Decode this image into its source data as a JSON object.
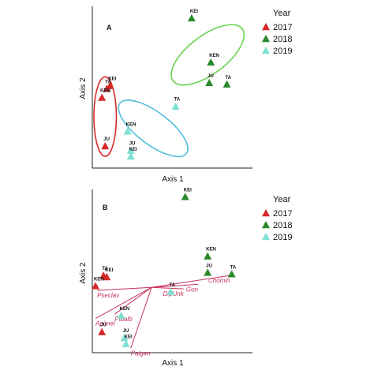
{
  "colors": {
    "2017": "#d62a2a",
    "2018": "#2a8a2a",
    "2019": "#7fe0d4",
    "ellipse_2017": "#d62a2a",
    "ellipse_2018": "#66d44c",
    "ellipse_2019": "#56bedc",
    "vector": "#c8325a"
  },
  "chart_data": [
    {
      "type": "scatter",
      "panel_label": "A",
      "xlabel": "Axis 1",
      "ylabel": "Axis 2",
      "legend": {
        "title": "Year",
        "placement": "right",
        "entries": [
          "2017",
          "2018",
          "2019"
        ]
      },
      "points": [
        {
          "label": "KEI",
          "year": "2018",
          "x": 0.62,
          "y": 0.92
        },
        {
          "label": "KEN",
          "year": "2018",
          "x": 0.74,
          "y": 0.62
        },
        {
          "label": "JU",
          "year": "2018",
          "x": 0.73,
          "y": 0.48
        },
        {
          "label": "TA",
          "year": "2018",
          "x": 0.84,
          "y": 0.47
        },
        {
          "label": "TA",
          "year": "2017",
          "x": 0.09,
          "y": 0.44
        },
        {
          "label": "KEI",
          "year": "2017",
          "x": 0.11,
          "y": 0.46
        },
        {
          "label": "KEN",
          "year": "2017",
          "x": 0.06,
          "y": 0.38
        },
        {
          "label": "JU",
          "year": "2017",
          "x": 0.08,
          "y": 0.05
        },
        {
          "label": "TA",
          "year": "2019",
          "x": 0.52,
          "y": 0.32
        },
        {
          "label": "KEN",
          "year": "2019",
          "x": 0.22,
          "y": 0.15
        },
        {
          "label": "JU",
          "year": "2019",
          "x": 0.24,
          "y": 0.02
        },
        {
          "label": "KEI",
          "year": "2019",
          "x": 0.24,
          "y": -0.02
        }
      ],
      "ellipses": [
        {
          "year": "2018",
          "cx": 0.72,
          "cy": 0.67,
          "rx": 0.27,
          "ry": 0.13,
          "angle": 37
        },
        {
          "year": "2017",
          "cx": 0.08,
          "cy": 0.25,
          "rx": 0.07,
          "ry": 0.27,
          "angle": 0
        },
        {
          "year": "2019",
          "cx": 0.38,
          "cy": 0.17,
          "rx": 0.26,
          "ry": 0.11,
          "angle": -37
        }
      ],
      "xlim": [
        0,
        1
      ],
      "ylim": [
        -0.1,
        1
      ]
    },
    {
      "type": "scatter",
      "panel_label": "B",
      "xlabel": "Axis 1",
      "ylabel": "Axis 2",
      "legend": {
        "title": "Year",
        "placement": "right",
        "entries": [
          "2017",
          "2018",
          "2019"
        ]
      },
      "points": [
        {
          "label": "KEI",
          "year": "2018",
          "x": 0.58,
          "y": 0.95
        },
        {
          "label": "KEN",
          "year": "2018",
          "x": 0.72,
          "y": 0.55
        },
        {
          "label": "JU",
          "year": "2018",
          "x": 0.72,
          "y": 0.44
        },
        {
          "label": "TA",
          "year": "2018",
          "x": 0.87,
          "y": 0.43
        },
        {
          "label": "TA",
          "year": "2017",
          "x": 0.07,
          "y": 0.42
        },
        {
          "label": "KEI",
          "year": "2017",
          "x": 0.09,
          "y": 0.41
        },
        {
          "label": "KEN",
          "year": "2017",
          "x": 0.02,
          "y": 0.35
        },
        {
          "label": "JU",
          "year": "2017",
          "x": 0.06,
          "y": 0.04
        },
        {
          "label": "TA",
          "year": "2019",
          "x": 0.49,
          "y": 0.31
        },
        {
          "label": "KEN",
          "year": "2019",
          "x": 0.18,
          "y": 0.15
        },
        {
          "label": "JU",
          "year": "2019",
          "x": 0.2,
          "y": 0.0
        },
        {
          "label": "KEI",
          "year": "2019",
          "x": 0.21,
          "y": -0.04
        }
      ],
      "vectors": [
        {
          "label": "Chomin",
          "x": 0.86,
          "y": 0.42
        },
        {
          "label": "Gon",
          "x": 0.66,
          "y": 0.36
        },
        {
          "label": "DipUnk",
          "x": 0.57,
          "y": 0.33
        },
        {
          "label": "Pseclav",
          "x": 0.03,
          "y": 0.32
        },
        {
          "label": "Palalb",
          "x": 0.14,
          "y": 0.16
        },
        {
          "label": "Apimel",
          "x": 0.02,
          "y": 0.13
        },
        {
          "label": "Palgen",
          "x": 0.24,
          "y": -0.07
        }
      ],
      "vector_origin": {
        "x": 0.37,
        "y": 0.34
      },
      "xlim": [
        0,
        1
      ],
      "ylim": [
        -0.1,
        1
      ]
    }
  ]
}
